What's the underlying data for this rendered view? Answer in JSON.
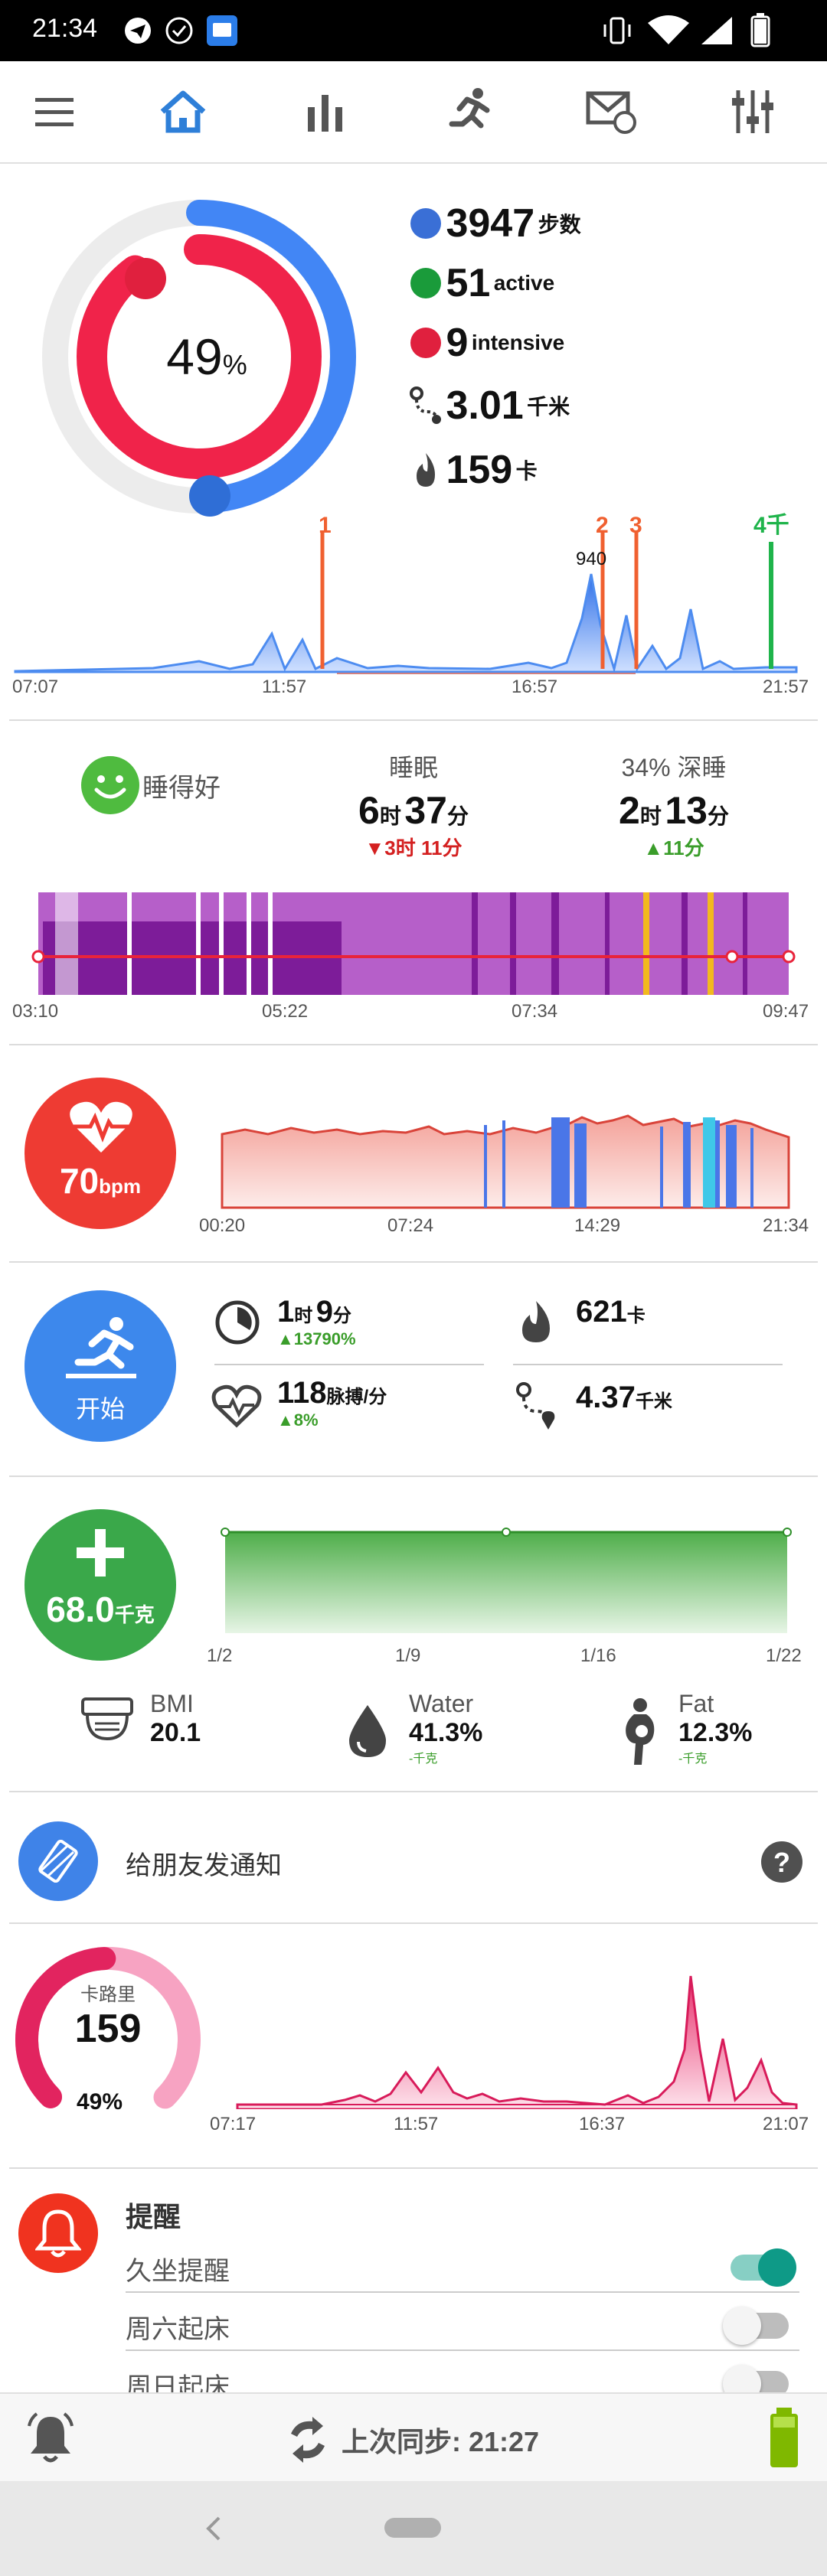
{
  "status_bar": {
    "time": "21:34"
  },
  "activity": {
    "percent": "49",
    "percent_unit": "%",
    "steps": "3947",
    "steps_unit": "步数",
    "active": "51",
    "active_unit": "active",
    "intensive": "9",
    "intensive_unit": "intensive",
    "distance": "3.01",
    "distance_unit": "千米",
    "calories": "159",
    "calories_unit": "卡",
    "chart_peak_label": "940",
    "markers": [
      "1",
      "2",
      "3",
      "4千"
    ],
    "x_ticks": [
      "07:07",
      "11:57",
      "16:57",
      "21:57"
    ]
  },
  "sleep": {
    "quality": "睡得好",
    "total_label": "睡眠",
    "total_h": "6",
    "total_h_unit": "时",
    "total_m": "37",
    "total_m_unit": "分",
    "total_delta": "▼3时 11分",
    "deep_label": "34% 深睡",
    "deep_h": "2",
    "deep_h_unit": "时",
    "deep_m": "13",
    "deep_m_unit": "分",
    "deep_delta": "▲11分",
    "x_ticks": [
      "03:10",
      "05:22",
      "07:34",
      "09:47"
    ]
  },
  "heart": {
    "bpm": "70",
    "unit": "bpm",
    "x_ticks": [
      "00:20",
      "07:24",
      "14:29",
      "21:34"
    ]
  },
  "workout": {
    "start_label": "开始",
    "duration_h": "1",
    "duration_h_unit": "时",
    "duration_m": "9",
    "duration_m_unit": "分",
    "duration_delta": "▲13790%",
    "calories": "621",
    "calories_unit": "卡",
    "heart": "118",
    "heart_unit": "脉搏/分",
    "heart_delta": "▲8%",
    "distance": "4.37",
    "distance_unit": "千米"
  },
  "weight": {
    "value": "68.0",
    "unit": "千克",
    "x_ticks": [
      "1/2",
      "1/9",
      "1/16",
      "1/22"
    ],
    "bmi_label": "BMI",
    "bmi_value": "20.1",
    "water_label": "Water",
    "water_value": "41.3%",
    "water_sub": "-千克",
    "fat_label": "Fat",
    "fat_value": "12.3%",
    "fat_sub": "-千克"
  },
  "notify": {
    "label": "给朋友发通知"
  },
  "calorie_card": {
    "label": "卡路里",
    "value": "159",
    "percent": "49%",
    "x_ticks": [
      "07:17",
      "11:57",
      "16:37",
      "21:07"
    ]
  },
  "reminders": {
    "title": "提醒",
    "items": [
      {
        "label": "久坐提醒",
        "on": true
      },
      {
        "label": "周六起床",
        "on": false
      },
      {
        "label": "周日起床",
        "on": false
      }
    ]
  },
  "bottom_bar": {
    "sync_label": "上次同步: 21:27"
  },
  "colors": {
    "blue": "#4286f5",
    "red": "#f0234a",
    "green": "#3aa84a",
    "teal": "#0e9a87",
    "purple": "#b65fc9"
  }
}
